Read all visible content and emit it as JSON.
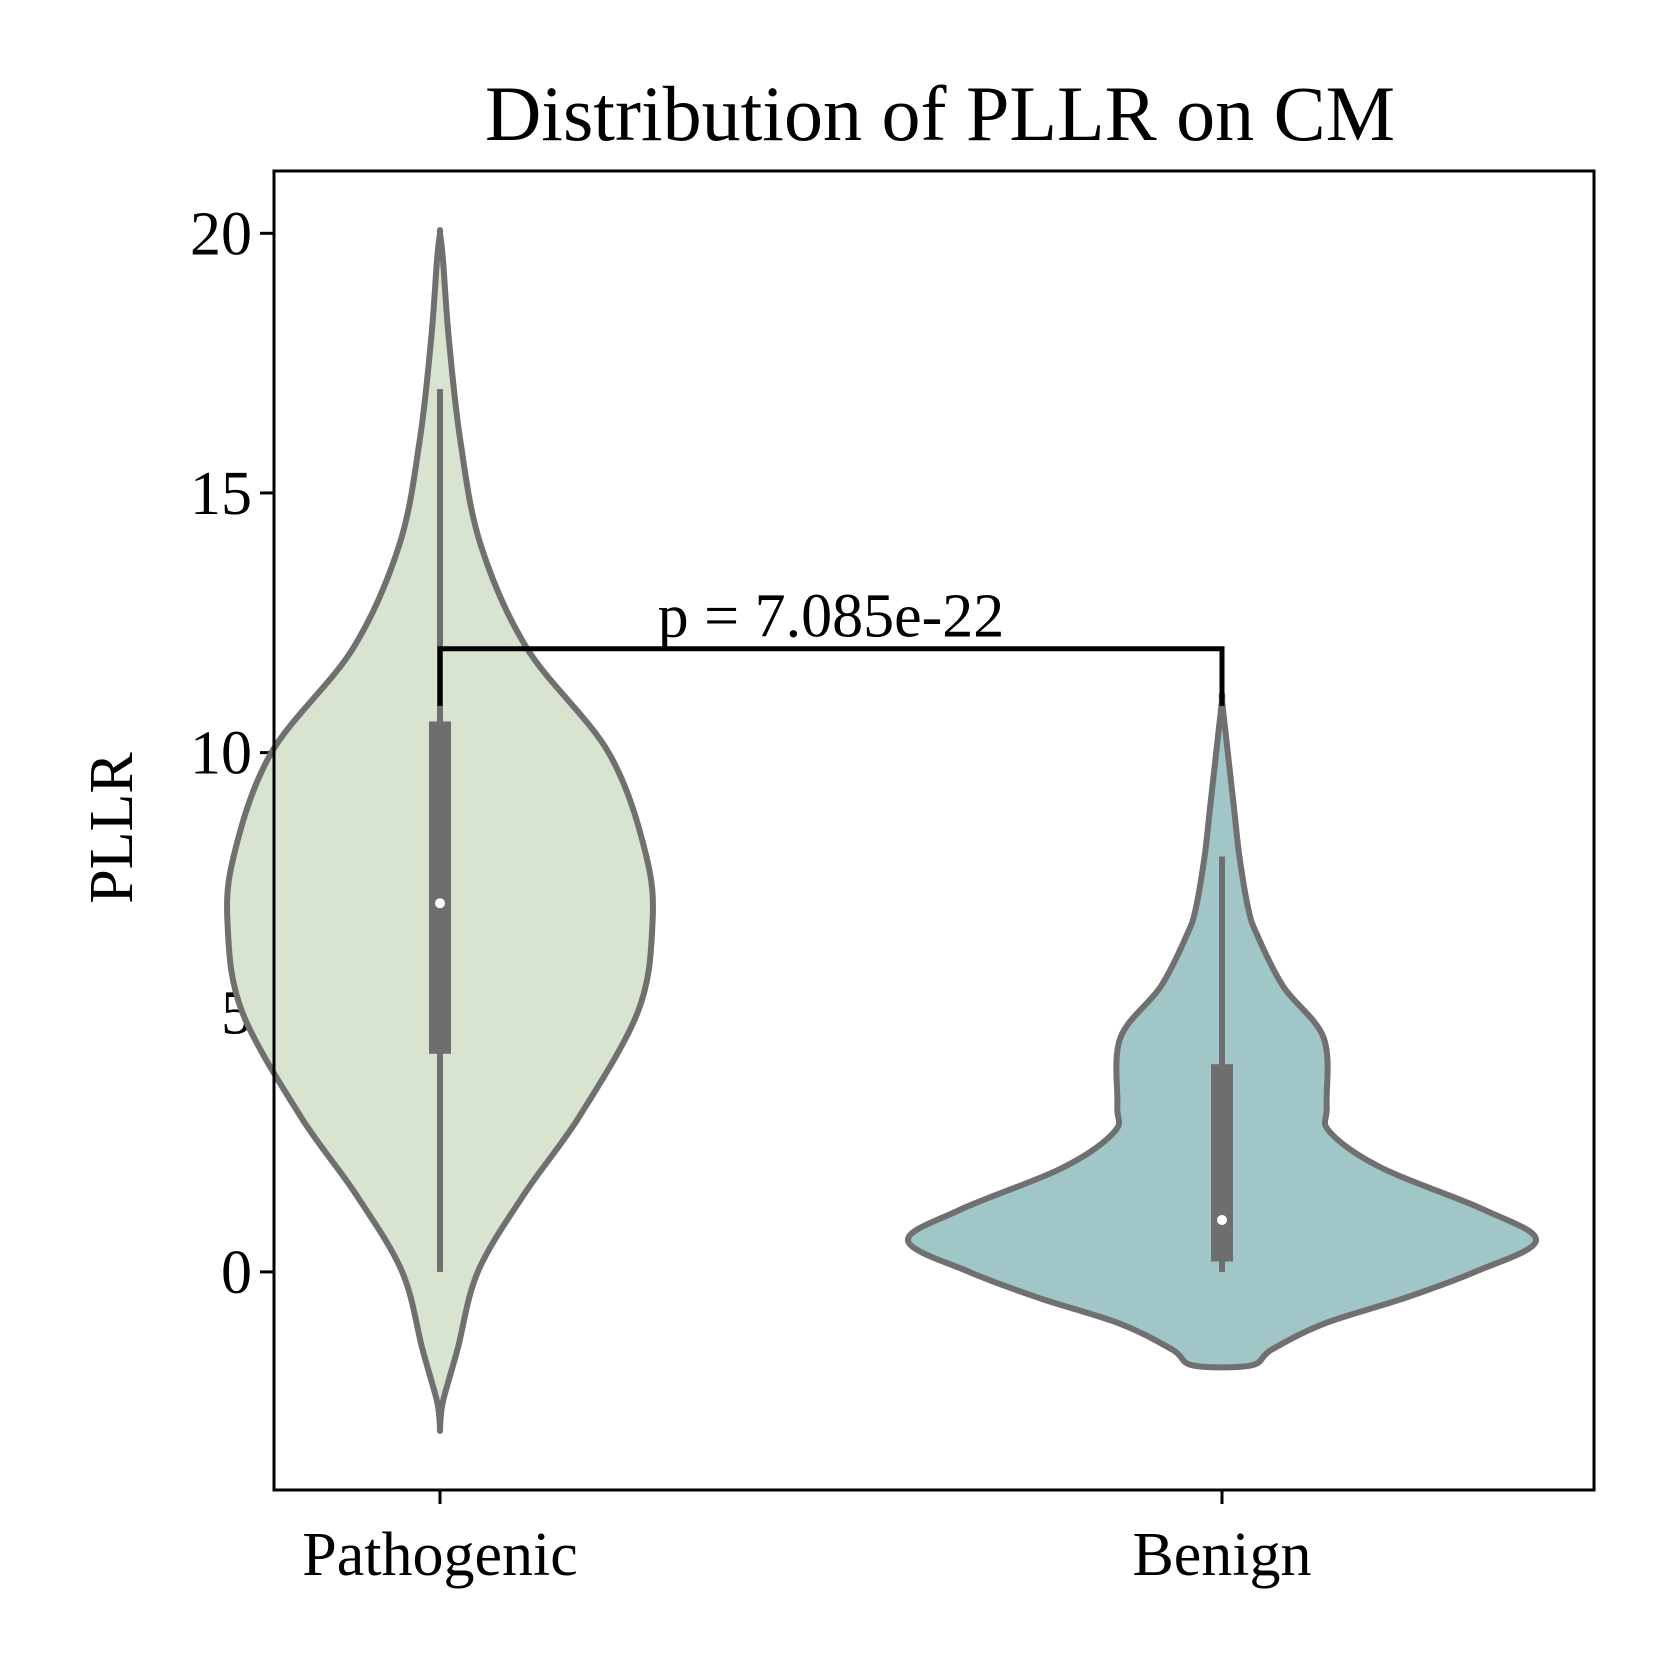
{
  "chart_data": {
    "type": "violin",
    "title": "Distribution of PLLR on CM",
    "xlabel": "",
    "ylabel": "PLLR",
    "categories": [
      "Pathogenic",
      "Benign"
    ],
    "ylim": [
      -4.2,
      21.2
    ],
    "yticks": [
      0,
      5,
      10,
      15,
      20
    ],
    "grid": false,
    "series": [
      {
        "category": "Pathogenic",
        "fill_color": "#d8e4cf",
        "min": 0.0,
        "q1": 4.2,
        "median": 7.1,
        "q3": 10.6,
        "max": 17.0,
        "kde_range": [
          -3.0,
          20.0
        ],
        "density_profile": [
          [
            -3.0,
            0.0
          ],
          [
            -2.5,
            0.01
          ],
          [
            -1.5,
            0.06
          ],
          [
            0.0,
            0.13
          ],
          [
            1.5,
            0.29
          ],
          [
            3.0,
            0.48
          ],
          [
            5.0,
            0.68
          ],
          [
            6.6,
            0.73
          ],
          [
            8.0,
            0.71
          ],
          [
            10.0,
            0.58
          ],
          [
            12.0,
            0.3
          ],
          [
            14.0,
            0.14
          ],
          [
            16.0,
            0.07
          ],
          [
            18.0,
            0.03
          ],
          [
            19.5,
            0.01
          ],
          [
            20.0,
            0.0
          ]
        ]
      },
      {
        "category": "Benign",
        "fill_color": "#a1c6c8",
        "min": 0.0,
        "q1": 0.2,
        "median": 1.0,
        "q3": 4.0,
        "max": 8.0,
        "kde_range": [
          -1.8,
          11.0
        ],
        "density_profile": [
          [
            -1.8,
            0.1
          ],
          [
            -1.5,
            0.17
          ],
          [
            -1.0,
            0.35
          ],
          [
            -0.5,
            0.63
          ],
          [
            0.0,
            0.87
          ],
          [
            0.6,
            1.08
          ],
          [
            1.2,
            0.9
          ],
          [
            2.0,
            0.55
          ],
          [
            2.7,
            0.37
          ],
          [
            3.2,
            0.36
          ],
          [
            4.5,
            0.35
          ],
          [
            5.5,
            0.21
          ],
          [
            6.5,
            0.12
          ],
          [
            7.0,
            0.09
          ],
          [
            8.0,
            0.06
          ],
          [
            9.0,
            0.04
          ],
          [
            10.0,
            0.02
          ],
          [
            11.0,
            0.0
          ]
        ]
      }
    ],
    "annotations": [
      {
        "type": "significance-bracket",
        "text": "p = 7.085e-22",
        "between": [
          "Pathogenic",
          "Benign"
        ],
        "y_bar": 12.0,
        "y_leg_bottom": 10.9
      }
    ],
    "colors": {
      "outline": "#707070",
      "box": "#6e6e6e",
      "median_dot": "#ffffff",
      "bracket": "#000000"
    }
  }
}
